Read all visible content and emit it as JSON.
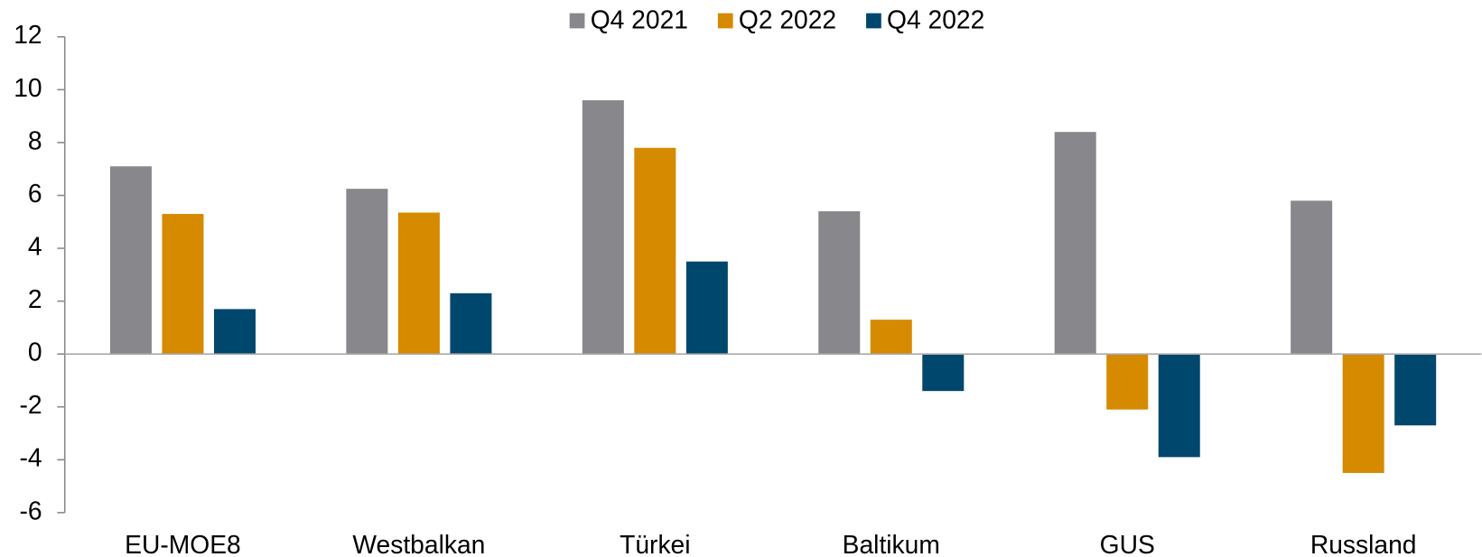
{
  "chart_data": {
    "type": "bar",
    "categories": [
      "EU-MOE8",
      "Westbalkan",
      "Türkei",
      "Baltikum",
      "GUS",
      "Russland"
    ],
    "series": [
      {
        "name": "Q4 2021",
        "color": "#88878c",
        "values": [
          7.1,
          6.25,
          9.6,
          5.4,
          8.4,
          5.8
        ]
      },
      {
        "name": "Q2 2022",
        "color": "#d68a00",
        "values": [
          5.3,
          5.35,
          7.8,
          1.3,
          -2.1,
          -4.5
        ]
      },
      {
        "name": "Q4 2022",
        "color": "#00476e",
        "values": [
          1.7,
          2.3,
          3.5,
          -1.4,
          -3.9,
          -2.7
        ]
      }
    ],
    "ylim": [
      -6,
      12
    ],
    "yticks": [
      -6,
      -4,
      -2,
      0,
      2,
      4,
      6,
      8,
      10,
      12
    ],
    "legend": "top"
  }
}
